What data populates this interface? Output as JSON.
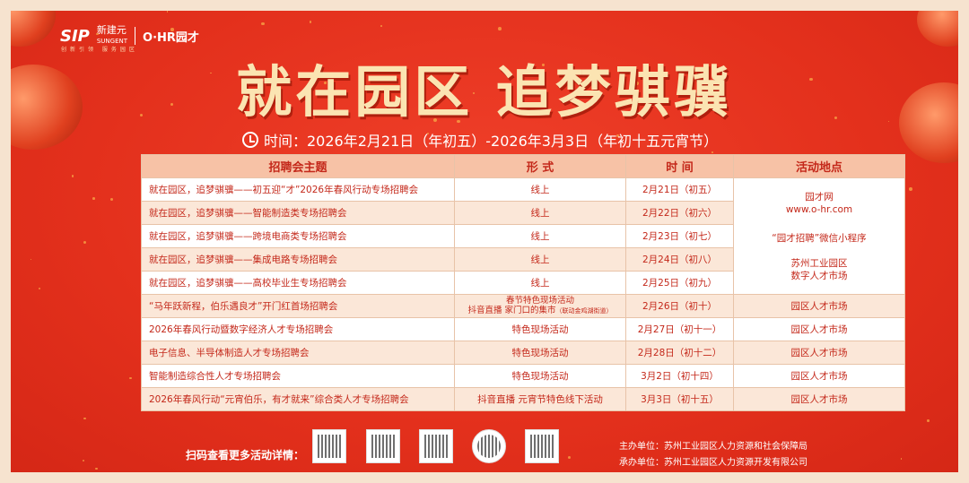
{
  "logos": {
    "sip": "SIP",
    "sungent_cn": "新建元",
    "sungent_en": "SUNGENT",
    "ohr": "O·HR园才",
    "slogan": "创新引领 服务园区"
  },
  "title": "就在园区 追梦骐骥",
  "subtitle": "时间：2026年2月21日（年初五）-2026年3月3日（年初十五元宵节）",
  "table": {
    "headers": [
      "招聘会主题",
      "形 式",
      "时 间",
      "活动地点"
    ],
    "rows": [
      {
        "theme": "就在园区，追梦骐骥——初五迎“才”2026年春风行动专场招聘会",
        "format": "线上",
        "date": "2月21日（初五）"
      },
      {
        "theme": "就在园区，追梦骐骥——智能制造类专场招聘会",
        "format": "线上",
        "date": "2月22日（初六）"
      },
      {
        "theme": "就在园区，追梦骐骥——跨境电商类专场招聘会",
        "format": "线上",
        "date": "2月23日（初七）"
      },
      {
        "theme": "就在园区，追梦骐骥——集成电路专场招聘会",
        "format": "线上",
        "date": "2月24日（初八）"
      },
      {
        "theme": "就在园区，追梦骐骥——高校毕业生专场招聘会",
        "format": "线上",
        "date": "2月25日（初九）"
      },
      {
        "theme": "“马年跃新程，伯乐遇良才”开门红首场招聘会",
        "format": "春节特色现场活动",
        "format2": "抖音直播  家门口的集市",
        "format_note": "（联动金鸡湖街道）",
        "date": "2月26日（初十）",
        "location": "园区人才市场"
      },
      {
        "theme": "2026年春风行动暨数字经济人才专场招聘会",
        "format": "特色现场活动",
        "date": "2月27日（初十一）",
        "location": "园区人才市场"
      },
      {
        "theme": "电子信息、半导体制造人才专场招聘会",
        "format": "特色现场活动",
        "date": "2月28日（初十二）",
        "location": "园区人才市场"
      },
      {
        "theme": "智能制造综合性人才专场招聘会",
        "format": "特色现场活动",
        "date": "3月2日（初十四）",
        "location": "园区人才市场"
      },
      {
        "theme": "2026年春风行动“元宵伯乐，有才就来”综合类人才专场招聘会",
        "format": "抖音直播  元宵节特色线下活动",
        "date": "3月3日（初十五）",
        "location": "园区人才市场"
      }
    ],
    "online_location": [
      "园才网",
      "www.o-hr.com",
      "“园才招聘”微信小程序",
      "苏州工业园区",
      "数字人才市场"
    ]
  },
  "footer": {
    "scan_text": "扫码查看更多活动详情：",
    "organizer": "主办单位：苏州工业园区人力资源和社会保障局",
    "co_organizer": "承办单位：苏州工业园区人力资源开发有限公司"
  },
  "colors": {
    "background": "#e3301c",
    "title": "#fbe4b2",
    "table_header": "#f7c2a6",
    "table_text": "#c4281a"
  }
}
